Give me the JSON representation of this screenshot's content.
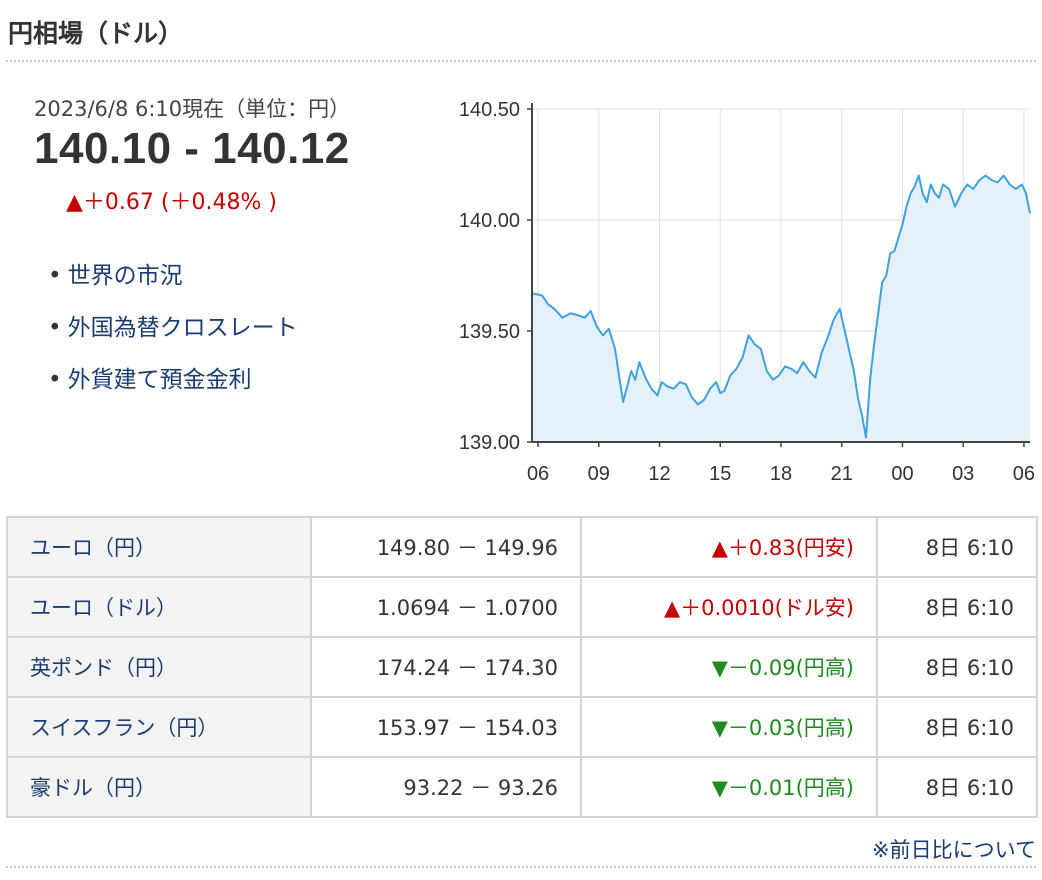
{
  "header": {
    "title": "円相場（ドル）"
  },
  "quote": {
    "timestamp": "2023/6/8 6:10現在（単位：円）",
    "price": "140.10 - 140.12",
    "change": "▲＋0.67 (＋0.48% )",
    "change_color": "#c40000"
  },
  "links": [
    {
      "bullet": "•",
      "label": "世界の市況"
    },
    {
      "bullet": "•",
      "label": "外国為替クロスレート"
    },
    {
      "bullet": "•",
      "label": "外貨建て預金金利"
    }
  ],
  "chart_data": {
    "type": "line",
    "title": "",
    "xlabel": "",
    "ylabel": "",
    "x_tick_labels": [
      "06",
      "09",
      "12",
      "15",
      "18",
      "21",
      "00",
      "03",
      "06"
    ],
    "x_tick_hours": [
      0,
      3,
      6,
      9,
      12,
      15,
      18,
      21,
      24
    ],
    "y_tick_labels": [
      "140.50",
      "140.00",
      "139.50",
      "139.00"
    ],
    "y_ticks": [
      140.5,
      140.0,
      139.5,
      139.0
    ],
    "ylim": [
      139.0,
      140.5
    ],
    "xlim": [
      -0.3,
      24.3
    ],
    "grid": true,
    "line_color": "#3fa2dc",
    "fill_color": "#e4f1fa",
    "series": [
      {
        "x": [
          -0.3,
          0.2,
          0.5,
          0.8,
          1.2,
          1.6,
          2.0,
          2.3,
          2.6,
          2.9,
          3.2,
          3.5,
          3.8,
          4.0,
          4.2,
          4.4,
          4.6,
          4.8,
          5.0,
          5.3,
          5.6,
          5.9,
          6.1,
          6.4,
          6.7,
          7.0,
          7.3,
          7.6,
          7.9,
          8.2,
          8.5,
          8.8,
          9.0,
          9.2,
          9.5,
          9.8,
          10.1,
          10.4,
          10.7,
          11.0,
          11.3,
          11.6,
          11.9,
          12.2,
          12.5,
          12.8,
          13.1,
          13.4,
          13.7,
          14.0,
          14.3,
          14.6,
          14.9,
          15.2,
          15.4,
          15.6,
          15.8,
          16.0,
          16.2,
          16.4,
          16.6,
          16.8,
          17.0,
          17.2,
          17.4,
          17.6,
          17.8,
          18.0,
          18.2,
          18.4,
          18.6,
          18.8,
          19.0,
          19.2,
          19.4,
          19.6,
          19.8,
          20.0,
          20.3,
          20.6,
          20.9,
          21.2,
          21.5,
          21.8,
          22.1,
          22.4,
          22.7,
          23.0,
          23.3,
          23.6,
          23.9,
          24.1,
          24.3
        ],
        "values": [
          139.67,
          139.66,
          139.62,
          139.6,
          139.56,
          139.58,
          139.57,
          139.56,
          139.59,
          139.52,
          139.48,
          139.51,
          139.42,
          139.3,
          139.18,
          139.25,
          139.32,
          139.28,
          139.36,
          139.29,
          139.24,
          139.21,
          139.27,
          139.25,
          139.24,
          139.27,
          139.26,
          139.2,
          139.17,
          139.19,
          139.24,
          139.27,
          139.22,
          139.23,
          139.3,
          139.33,
          139.38,
          139.48,
          139.44,
          139.42,
          139.32,
          139.28,
          139.3,
          139.34,
          139.33,
          139.31,
          139.36,
          139.32,
          139.29,
          139.4,
          139.47,
          139.55,
          139.6,
          139.48,
          139.4,
          139.32,
          139.2,
          139.12,
          139.02,
          139.28,
          139.44,
          139.58,
          139.72,
          139.75,
          139.85,
          139.86,
          139.92,
          139.98,
          140.06,
          140.12,
          140.15,
          140.2,
          140.12,
          140.08,
          140.16,
          140.12,
          140.1,
          140.16,
          140.14,
          140.06,
          140.12,
          140.16,
          140.14,
          140.18,
          140.2,
          140.18,
          140.17,
          140.2,
          140.16,
          140.14,
          140.16,
          140.12,
          140.03
        ]
      }
    ]
  },
  "table": {
    "rows": [
      {
        "name": "ユーロ（円）",
        "bid_ask": "149.80 － 149.96",
        "change": "▲＋0.83(円安)",
        "dir": "up",
        "time": "8日 6:10"
      },
      {
        "name": "ユーロ（ドル）",
        "bid_ask": "1.0694 － 1.0700",
        "change": "▲＋0.0010(ドル安)",
        "dir": "up",
        "time": "8日 6:10"
      },
      {
        "name": "英ポンド（円）",
        "bid_ask": "174.24 － 174.30",
        "change": "▼－0.09(円高)",
        "dir": "down",
        "time": "8日 6:10"
      },
      {
        "name": "スイスフラン（円）",
        "bid_ask": "153.97 － 154.03",
        "change": "▼－0.03(円高)",
        "dir": "down",
        "time": "8日 6:10"
      },
      {
        "name": "豪ドル（円）",
        "bid_ask": "93.22 － 93.26",
        "change": "▼－0.01(円高)",
        "dir": "down",
        "time": "8日 6:10"
      }
    ]
  },
  "footer": {
    "note": "※前日比について"
  }
}
